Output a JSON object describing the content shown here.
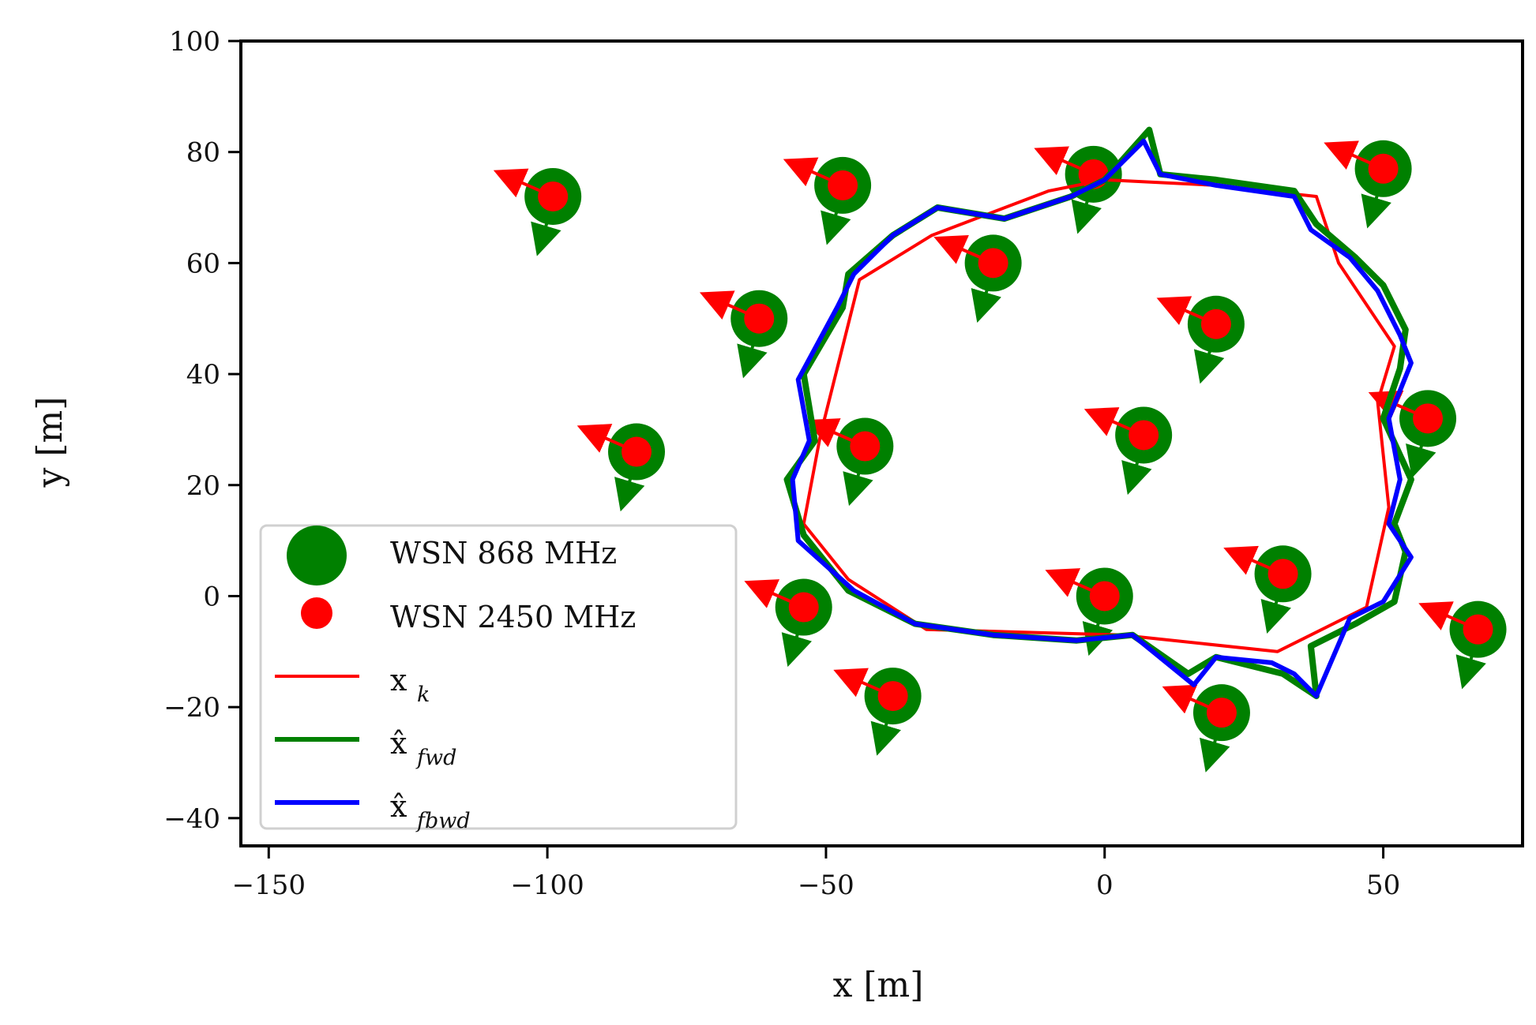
{
  "chart_data": {
    "type": "scatter",
    "title": "",
    "xlabel": "x [m]",
    "ylabel": "y [m]",
    "xlim": [
      -155,
      75
    ],
    "ylim": [
      -45,
      100
    ],
    "xticks": [
      -150,
      -100,
      -50,
      0,
      50
    ],
    "yticks": [
      -40,
      -20,
      0,
      20,
      40,
      60,
      80,
      100
    ],
    "xtick_labels": [
      "−150",
      "−100",
      "−50",
      "0",
      "50"
    ],
    "ytick_labels": [
      "−40",
      "−20",
      "0",
      "20",
      "40",
      "60",
      "80",
      "100"
    ],
    "grid": false,
    "legend_position": "bottom-left",
    "colors": {
      "wsn868": "#008000",
      "wsn2450": "#ff0000",
      "truth": "#ff0000",
      "fwd": "#008000",
      "fbwd": "#0000ff"
    },
    "anchors": [
      {
        "x": -99,
        "y": 72
      },
      {
        "x": -47,
        "y": 74
      },
      {
        "x": -2,
        "y": 76
      },
      {
        "x": 50,
        "y": 77
      },
      {
        "x": -20,
        "y": 60
      },
      {
        "x": 20,
        "y": 49
      },
      {
        "x": -62,
        "y": 50
      },
      {
        "x": -84,
        "y": 26
      },
      {
        "x": -43,
        "y": 27
      },
      {
        "x": 7,
        "y": 29
      },
      {
        "x": 58,
        "y": 32
      },
      {
        "x": -54,
        "y": -2
      },
      {
        "x": 0,
        "y": 0
      },
      {
        "x": 32,
        "y": 4
      },
      {
        "x": 67,
        "y": -6
      },
      {
        "x": -38,
        "y": -18
      },
      {
        "x": 21,
        "y": -21
      }
    ],
    "series": [
      {
        "name": "x_k",
        "legend_label": "x",
        "legend_sub": "k",
        "kind": "line",
        "x": [
          38,
          42,
          52,
          49,
          51,
          47,
          31,
          3,
          -32,
          -46,
          -54,
          -51,
          -44,
          -31,
          -10,
          0,
          20,
          38
        ],
        "y": [
          72,
          60,
          45,
          35,
          16,
          -2,
          -10,
          -7,
          -6,
          3,
          13,
          29,
          57,
          65,
          73,
          75,
          74,
          72
        ]
      },
      {
        "name": "x_fwd",
        "legend_label": "x̂",
        "legend_sub": "fwd",
        "kind": "line",
        "x": [
          8,
          10,
          20,
          34,
          38,
          45,
          50,
          54,
          53,
          50,
          55,
          52,
          54,
          52,
          45,
          37,
          38,
          32,
          20,
          15,
          5,
          -5,
          -20,
          -34,
          -46,
          -54,
          -57,
          -52,
          -54,
          -47,
          -46,
          -38,
          -30,
          -18,
          -6,
          0,
          8
        ],
        "y": [
          84,
          76,
          75,
          73,
          67,
          61,
          56,
          48,
          41,
          32,
          21,
          13,
          8,
          -1,
          -5,
          -9,
          -18,
          -14,
          -11,
          -14,
          -7,
          -8,
          -7,
          -5,
          1,
          11,
          21,
          28,
          40,
          52,
          58,
          65,
          70,
          68,
          72,
          75,
          84
        ]
      },
      {
        "name": "x_fbwd",
        "legend_label": "x̂",
        "legend_sub": "fbwd",
        "kind": "line",
        "x": [
          7,
          10,
          20,
          34,
          37,
          44,
          49,
          53,
          55,
          51,
          53,
          51,
          55,
          50,
          44,
          38,
          34,
          30,
          20,
          16,
          5,
          -5,
          -20,
          -34,
          -45,
          -55,
          -56,
          -53,
          -55,
          -48,
          -45,
          -38,
          -30,
          -18,
          -6,
          0,
          7
        ],
        "y": [
          82,
          76,
          74,
          72,
          66,
          61,
          55,
          47,
          42,
          32,
          21,
          13,
          7,
          -1,
          -4,
          -18,
          -14,
          -12,
          -11,
          -16,
          -7,
          -8,
          -7,
          -5,
          1,
          10,
          21,
          28,
          39,
          52,
          58,
          65,
          70,
          68,
          72,
          75,
          82
        ]
      }
    ],
    "legend_entries": [
      {
        "marker": "circle-large",
        "color": "#008000",
        "label": "WSN 868 MHz"
      },
      {
        "marker": "circle-small",
        "color": "#ff0000",
        "label": "WSN 2450 MHz"
      },
      {
        "marker": "line",
        "color": "#ff0000",
        "label": "x",
        "sub": "k"
      },
      {
        "marker": "line",
        "color": "#008000",
        "label": "x̂",
        "sub": "fwd"
      },
      {
        "marker": "line",
        "color": "#0000ff",
        "label": "x̂",
        "sub": "fbwd"
      }
    ]
  }
}
